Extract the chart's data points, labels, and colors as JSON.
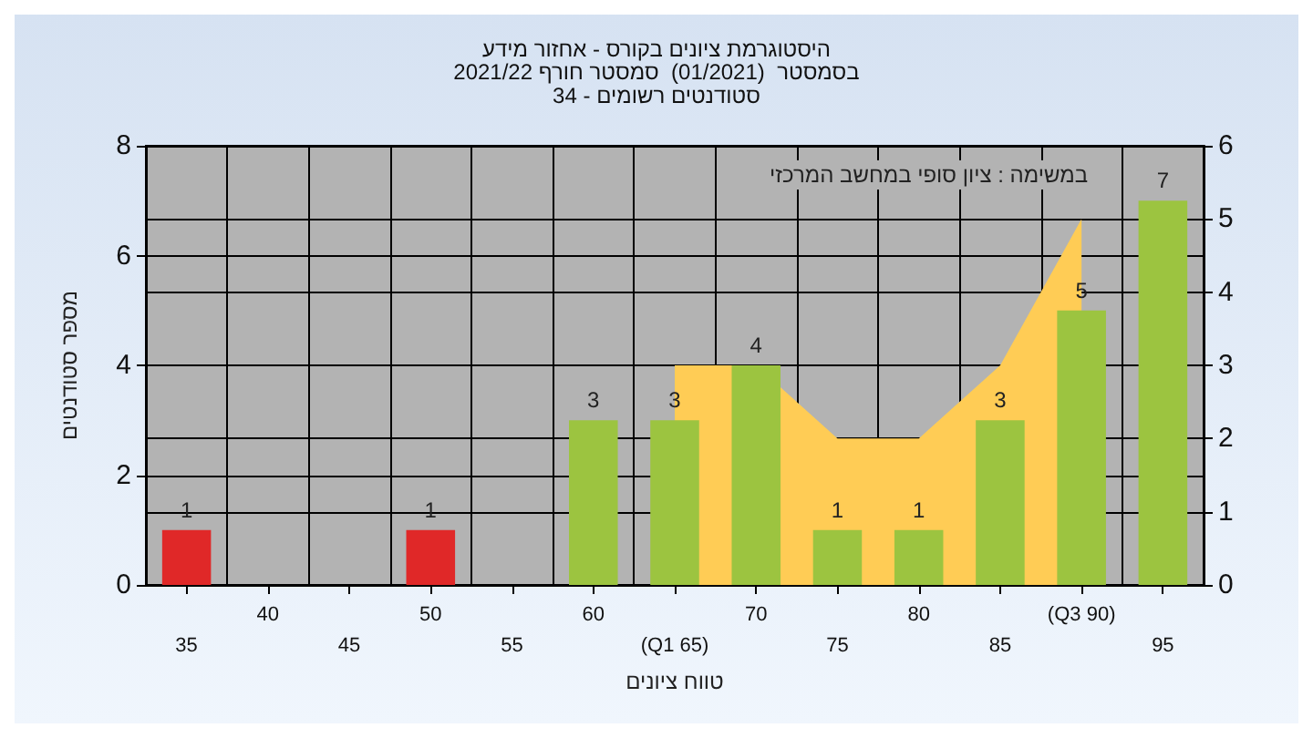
{
  "chart_data": {
    "type": "bar",
    "title": "היסטוגרמת ציונים בקורס - אחזור מידע",
    "subtitle": "בסמסטר  (01/2021)  סמסטר חורף 2021/22\nסטודנטים רשומים - 34",
    "xlabel": "טווח ציונים",
    "ylabel": "מספר סטודנטים",
    "annotations": [
      "במשימה : ציון סופי במחשב המרכזי"
    ],
    "categories": [
      "35",
      "40",
      "45",
      "50",
      "55",
      "60",
      "(Q1 65)",
      "70",
      "75",
      "80",
      "85",
      "(Q3 90)",
      "95"
    ],
    "series": [
      {
        "type": "area",
        "axis": "y2",
        "color": "#ffcc55",
        "values": [
          null,
          null,
          null,
          null,
          null,
          null,
          3,
          3,
          2,
          2,
          3,
          5,
          null
        ]
      },
      {
        "value_labels": [
          "1",
          null,
          null,
          "1",
          null,
          "3",
          "3",
          "4",
          "1",
          "1",
          "3",
          "5",
          "7"
        ],
        "colors": [
          "#e02828",
          null,
          null,
          "#e02828",
          null,
          "#9cc440",
          "#9cc440",
          "#9cc440",
          "#9cc440",
          "#9cc440",
          "#9cc440",
          "#9cc440",
          "#9cc440"
        ],
        "values": [
          1,
          null,
          null,
          1,
          null,
          3,
          3,
          4,
          1,
          1,
          3,
          5,
          7
        ]
      }
    ],
    "ylim": [
      0,
      8
    ],
    "yticks": [
      0,
      2,
      4,
      6,
      8
    ],
    "y2lim": [
      0,
      6
    ],
    "y2ticks": [
      0,
      1,
      2,
      3,
      4,
      5,
      6
    ],
    "grid": true
  }
}
